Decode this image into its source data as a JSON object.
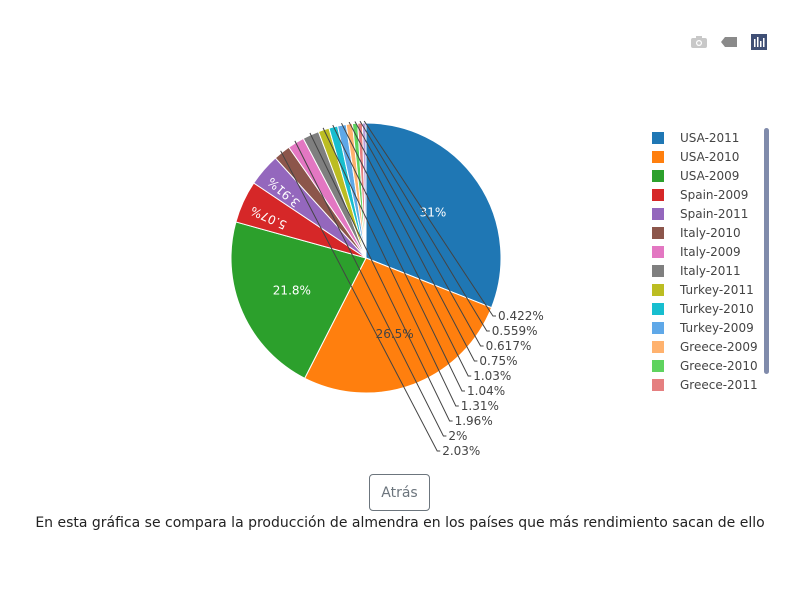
{
  "modebar": {
    "icons": [
      "camera-icon",
      "tag-icon",
      "bar-chart-icon"
    ]
  },
  "chart_data": {
    "type": "pie",
    "title": "",
    "slices": [
      {
        "label": "USA-2011",
        "value": 31,
        "text": "31%",
        "color": "#1f77b4"
      },
      {
        "label": "USA-2010",
        "value": 26.5,
        "text": "26.5%",
        "color": "#ff7f0e"
      },
      {
        "label": "USA-2009",
        "value": 21.8,
        "text": "21.8%",
        "color": "#2ca02c"
      },
      {
        "label": "Spain-2009",
        "value": 5.07,
        "text": "5.07%",
        "color": "#d62728"
      },
      {
        "label": "Spain-2011",
        "value": 3.91,
        "text": "3.91%",
        "color": "#9467bd"
      },
      {
        "label": "Italy-2010",
        "value": 2.03,
        "text": "2.03%",
        "color": "#8c564b"
      },
      {
        "label": "Italy-2009",
        "value": 2,
        "text": "2%",
        "color": "#e377c2"
      },
      {
        "label": "Italy-2011",
        "value": 1.96,
        "text": "1.96%",
        "color": "#7f7f7f"
      },
      {
        "label": "Turkey-2011",
        "value": 1.31,
        "text": "1.31%",
        "color": "#bcbd22"
      },
      {
        "label": "Turkey-2010",
        "value": 1.04,
        "text": "1.04%",
        "color": "#17becf"
      },
      {
        "label": "Turkey-2009",
        "value": 1.03,
        "text": "1.03%",
        "color": "#5fa8e8"
      },
      {
        "label": "Greece-2009",
        "value": 0.75,
        "text": "0.75%",
        "color": "#ffb26e"
      },
      {
        "label": "Greece-2010",
        "value": 0.617,
        "text": "0.617%",
        "color": "#5fd35f"
      },
      {
        "label": "Greece-2011",
        "value": 0.559,
        "text": "0.559%",
        "color": "#e57f80"
      },
      {
        "label": "",
        "value": 0.422,
        "text": "0.422%",
        "color": "#b39ddb"
      }
    ],
    "legend_position": "right"
  },
  "back_button": {
    "label": "Atrás"
  },
  "caption": "En esta gráfica se compara la producción de almendra en los países que más rendimiento sacan de ello"
}
